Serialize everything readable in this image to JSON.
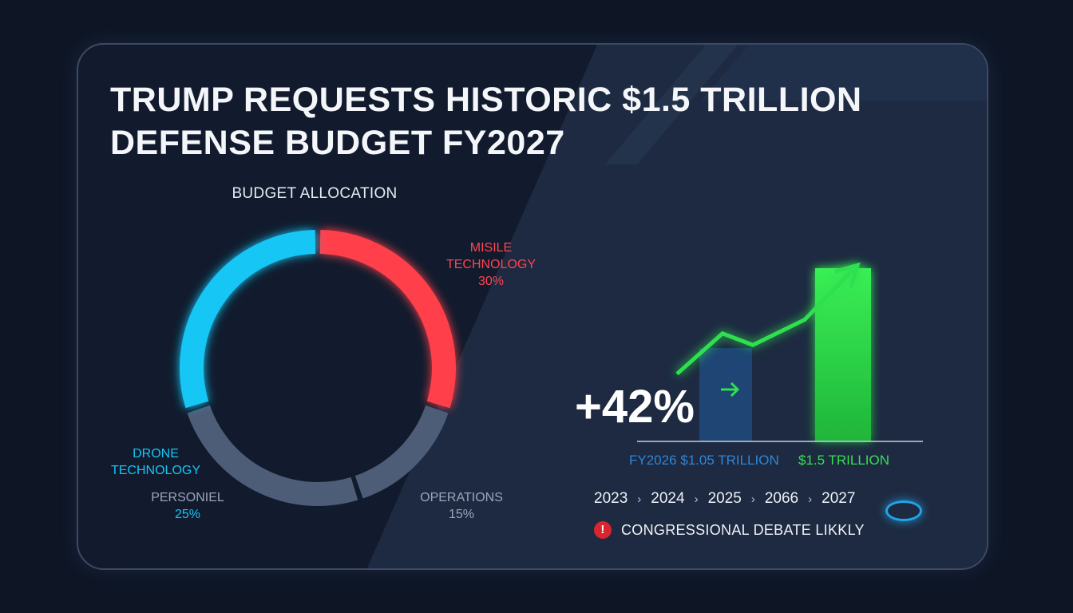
{
  "headline": {
    "line1": "TRUMP REQUESTS HISTORIC $1.5 TRILLION",
    "line2": "DEFENSE BUDGET FY2027"
  },
  "colors": {
    "background": "#0e1626",
    "missile": "#ff3f4b",
    "drone": "#16c6f5",
    "personnel_operations": "#4d5d78",
    "growth": "#2fe04f",
    "fy2026": "#1f4f86"
  },
  "chart_data": [
    {
      "type": "pie",
      "title": "BUDGET ALLOCATION",
      "style": "donut",
      "slices": [
        {
          "label_line1": "MISILE",
          "label_line2": "TECHNOLOGY",
          "value": 30,
          "value_label": "30%",
          "color": "#ff3f4b"
        },
        {
          "label_line1": "OPERATIONS",
          "label_line2": "",
          "value": 15,
          "value_label": "15%",
          "color": "#4d5d78"
        },
        {
          "label_line1": "PERSONIEL",
          "label_line2": "",
          "value": 25,
          "value_label": "25%",
          "color": "#4d5d78"
        },
        {
          "label_line1": "DRONE",
          "label_line2": "TECHNOLOGY",
          "value": 30,
          "value_label": "",
          "color": "#16c6f5"
        }
      ]
    },
    {
      "type": "bar",
      "categories": [
        "FY2026",
        "FY2027"
      ],
      "values": [
        1.05,
        1.5
      ],
      "value_labels": [
        "FY2026 $1.05 TRILLION",
        "$1.5 TRILLION"
      ],
      "change_label": "+42%",
      "ylim": [
        0,
        1.5
      ],
      "trend_line": [
        0.55,
        0.9,
        0.8,
        1.02,
        1.45
      ]
    }
  ],
  "timeline": {
    "years": [
      "2023",
      "2024",
      "2025",
      "2066",
      "2027"
    ],
    "separator": "›",
    "current_index": 4
  },
  "alert": {
    "icon": "!",
    "text": "CONGRESSIONAL DEBATE LIKKLY"
  }
}
